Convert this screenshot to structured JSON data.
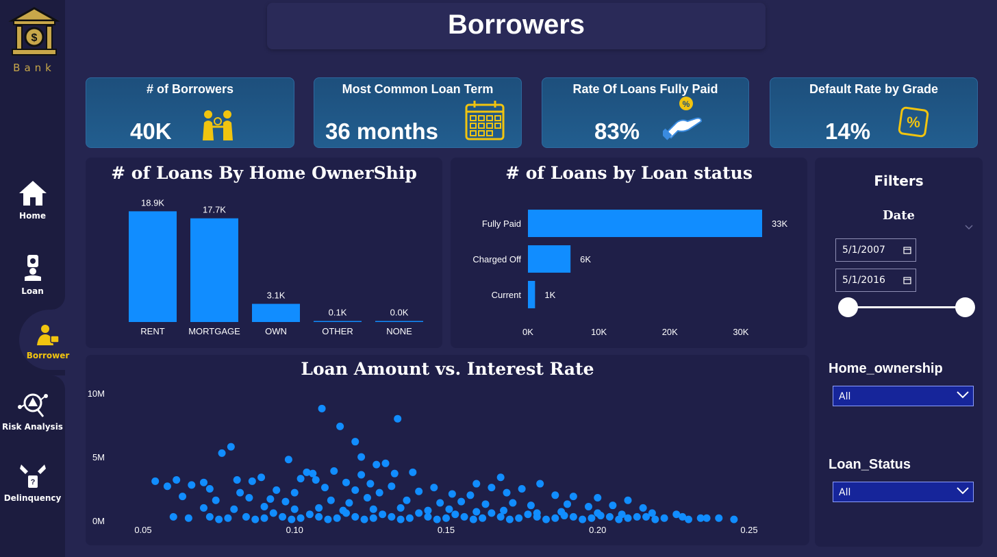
{
  "sidebar": {
    "logo_text": "Bank",
    "items": [
      {
        "label": "Home",
        "icon": "home-icon"
      },
      {
        "label": "Loan",
        "icon": "loan-icon"
      },
      {
        "label": "Borrower",
        "icon": "borrower-icon",
        "active": true
      },
      {
        "label": "Risk Analysis",
        "icon": "risk-analysis-icon"
      },
      {
        "label": "Delinquency",
        "icon": "delinquency-icon"
      }
    ]
  },
  "header": {
    "title": "Borrowers"
  },
  "kpis": [
    {
      "title": "# of Borrowers",
      "value": "40K",
      "icon": "borrowers-icon"
    },
    {
      "title": "Most Common Loan Term",
      "value": "36 months",
      "icon": "calendar-icon"
    },
    {
      "title": "Rate Of Loans Fully Paid",
      "value": "83%",
      "icon": "hand-coin-icon"
    },
    {
      "title": "Default Rate by Grade",
      "value": "14%",
      "icon": "percent-tag-icon"
    }
  ],
  "colors": {
    "accent_bar": "#118dff",
    "kpi_bg": "#1f5687",
    "active_nav": "#f1c40f",
    "logo_gold": "#c8a74a"
  },
  "filters": {
    "title": "Filters",
    "date_label": "Date",
    "date_start": "5/1/2007",
    "date_end": "5/1/2016",
    "home_ownership_label": "Home_ownership",
    "home_ownership_value": "All",
    "loan_status_label": "Loan_Status",
    "loan_status_value": "All"
  },
  "chart_data": [
    {
      "type": "bar",
      "title": "# of Loans By Home OwnerShip",
      "categories": [
        "RENT",
        "MORTGAGE",
        "OWN",
        "OTHER",
        "NONE"
      ],
      "values": [
        18.9,
        17.7,
        3.1,
        0.1,
        0.0
      ],
      "data_labels": [
        "18.9K",
        "17.7K",
        "3.1K",
        "0.1K",
        "0.0K"
      ],
      "ylim": [
        0,
        20
      ],
      "grid": false
    },
    {
      "type": "bar",
      "orientation": "horizontal",
      "title": "# of Loans by Loan status",
      "categories": [
        "Fully Paid",
        "Charged Off",
        "Current"
      ],
      "values": [
        33000,
        6000,
        1000
      ],
      "data_labels": [
        "33K",
        "6K",
        "1K"
      ],
      "x_ticks": [
        "0K",
        "10K",
        "20K",
        "30K"
      ],
      "xlim": [
        0,
        33000
      ],
      "grid": false
    },
    {
      "type": "scatter",
      "title": "Loan Amount vs. Interest Rate",
      "x_ticks": [
        "0.05",
        "0.10",
        "0.15",
        "0.20",
        "0.25"
      ],
      "y_ticks": [
        "0M",
        "5M",
        "10M"
      ],
      "xlim": [
        0.05,
        0.25
      ],
      "ylim": [
        0,
        10
      ],
      "points": [
        [
          0.109,
          8.8
        ],
        [
          0.134,
          8.0
        ],
        [
          0.115,
          7.4
        ],
        [
          0.12,
          6.2
        ],
        [
          0.079,
          5.8
        ],
        [
          0.076,
          5.3
        ],
        [
          0.122,
          5.0
        ],
        [
          0.13,
          4.5
        ],
        [
          0.098,
          4.8
        ],
        [
          0.127,
          4.4
        ],
        [
          0.113,
          3.9
        ],
        [
          0.104,
          3.8
        ],
        [
          0.106,
          3.7
        ],
        [
          0.122,
          3.6
        ],
        [
          0.139,
          3.8
        ],
        [
          0.133,
          3.7
        ],
        [
          0.168,
          3.4
        ],
        [
          0.054,
          3.1
        ],
        [
          0.061,
          3.2
        ],
        [
          0.07,
          3.0
        ],
        [
          0.081,
          3.2
        ],
        [
          0.086,
          3.1
        ],
        [
          0.089,
          3.4
        ],
        [
          0.102,
          3.3
        ],
        [
          0.107,
          3.2
        ],
        [
          0.117,
          3.0
        ],
        [
          0.125,
          2.9
        ],
        [
          0.132,
          2.7
        ],
        [
          0.146,
          2.6
        ],
        [
          0.16,
          2.9
        ],
        [
          0.165,
          2.6
        ],
        [
          0.181,
          2.9
        ],
        [
          0.175,
          2.5
        ],
        [
          0.058,
          2.7
        ],
        [
          0.066,
          2.8
        ],
        [
          0.072,
          2.5
        ],
        [
          0.082,
          2.2
        ],
        [
          0.094,
          2.4
        ],
        [
          0.1,
          2.2
        ],
        [
          0.11,
          2.6
        ],
        [
          0.12,
          2.4
        ],
        [
          0.128,
          2.2
        ],
        [
          0.141,
          2.3
        ],
        [
          0.152,
          2.1
        ],
        [
          0.158,
          2.0
        ],
        [
          0.17,
          2.2
        ],
        [
          0.186,
          2.0
        ],
        [
          0.192,
          1.9
        ],
        [
          0.2,
          1.8
        ],
        [
          0.21,
          1.6
        ],
        [
          0.063,
          1.9
        ],
        [
          0.074,
          1.6
        ],
        [
          0.085,
          1.8
        ],
        [
          0.092,
          1.7
        ],
        [
          0.097,
          1.5
        ],
        [
          0.112,
          1.6
        ],
        [
          0.118,
          1.4
        ],
        [
          0.124,
          1.8
        ],
        [
          0.137,
          1.6
        ],
        [
          0.148,
          1.4
        ],
        [
          0.155,
          1.5
        ],
        [
          0.163,
          1.3
        ],
        [
          0.172,
          1.4
        ],
        [
          0.178,
          1.2
        ],
        [
          0.19,
          1.3
        ],
        [
          0.197,
          1.1
        ],
        [
          0.205,
          1.2
        ],
        [
          0.215,
          1.0
        ],
        [
          0.07,
          1.0
        ],
        [
          0.08,
          0.9
        ],
        [
          0.09,
          1.1
        ],
        [
          0.1,
          0.9
        ],
        [
          0.108,
          1.0
        ],
        [
          0.116,
          0.8
        ],
        [
          0.126,
          0.9
        ],
        [
          0.135,
          1.0
        ],
        [
          0.144,
          0.8
        ],
        [
          0.151,
          0.9
        ],
        [
          0.16,
          0.7
        ],
        [
          0.169,
          0.8
        ],
        [
          0.18,
          0.6
        ],
        [
          0.188,
          0.7
        ],
        [
          0.2,
          0.6
        ],
        [
          0.208,
          0.5
        ],
        [
          0.218,
          0.6
        ],
        [
          0.226,
          0.5
        ],
        [
          0.06,
          0.3
        ],
        [
          0.065,
          0.2
        ],
        [
          0.072,
          0.3
        ],
        [
          0.078,
          0.2
        ],
        [
          0.084,
          0.3
        ],
        [
          0.09,
          0.2
        ],
        [
          0.096,
          0.3
        ],
        [
          0.102,
          0.2
        ],
        [
          0.108,
          0.3
        ],
        [
          0.114,
          0.2
        ],
        [
          0.12,
          0.3
        ],
        [
          0.126,
          0.2
        ],
        [
          0.132,
          0.3
        ],
        [
          0.138,
          0.2
        ],
        [
          0.144,
          0.3
        ],
        [
          0.15,
          0.2
        ],
        [
          0.156,
          0.3
        ],
        [
          0.162,
          0.2
        ],
        [
          0.168,
          0.3
        ],
        [
          0.174,
          0.2
        ],
        [
          0.18,
          0.3
        ],
        [
          0.186,
          0.2
        ],
        [
          0.192,
          0.3
        ],
        [
          0.198,
          0.2
        ],
        [
          0.204,
          0.3
        ],
        [
          0.21,
          0.2
        ],
        [
          0.216,
          0.3
        ],
        [
          0.222,
          0.2
        ],
        [
          0.228,
          0.3
        ],
        [
          0.234,
          0.2
        ],
        [
          0.24,
          0.2
        ],
        [
          0.245,
          0.1
        ],
        [
          0.236,
          0.2
        ],
        [
          0.23,
          0.1
        ],
        [
          0.075,
          0.1
        ],
        [
          0.087,
          0.1
        ],
        [
          0.099,
          0.1
        ],
        [
          0.111,
          0.1
        ],
        [
          0.123,
          0.1
        ],
        [
          0.135,
          0.1
        ],
        [
          0.147,
          0.1
        ],
        [
          0.159,
          0.1
        ],
        [
          0.171,
          0.1
        ],
        [
          0.183,
          0.1
        ],
        [
          0.195,
          0.1
        ],
        [
          0.207,
          0.1
        ],
        [
          0.219,
          0.1
        ],
        [
          0.093,
          0.6
        ],
        [
          0.105,
          0.5
        ],
        [
          0.117,
          0.6
        ],
        [
          0.129,
          0.5
        ],
        [
          0.141,
          0.6
        ],
        [
          0.153,
          0.5
        ],
        [
          0.165,
          0.6
        ],
        [
          0.177,
          0.5
        ],
        [
          0.189,
          0.4
        ],
        [
          0.201,
          0.4
        ],
        [
          0.213,
          0.3
        ]
      ]
    }
  ]
}
